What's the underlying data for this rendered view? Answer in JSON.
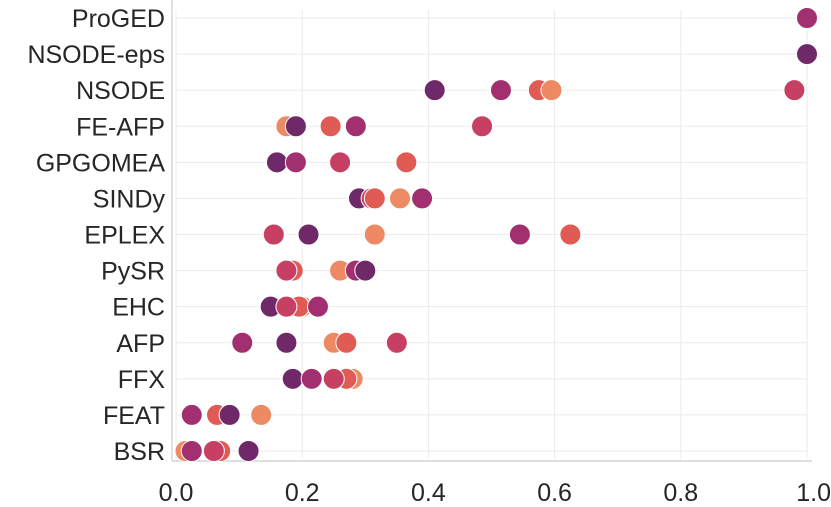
{
  "chart_data": {
    "type": "scatter",
    "title": "",
    "xlabel": "",
    "ylabel": "",
    "xlim": [
      0.0,
      1.0
    ],
    "x_ticks": [
      "0.0",
      "0.2",
      "0.4",
      "0.6",
      "0.8",
      "1.0"
    ],
    "grid": true,
    "legend": "none",
    "categories": [
      "ProGED",
      "NSODE-eps",
      "NSODE",
      "FE-AFP",
      "GPGOMEA",
      "SINDy",
      "EPLEX",
      "PySR",
      "EHC",
      "AFP",
      "FFX",
      "FEAT",
      "BSR"
    ],
    "palette": [
      "#ee8a63",
      "#e05b53",
      "#c83f64",
      "#a23070",
      "#702968"
    ],
    "points": [
      {
        "category": "ProGED",
        "x": 1.0,
        "color": "#a23070"
      },
      {
        "category": "NSODE-eps",
        "x": 1.0,
        "color": "#702968"
      },
      {
        "category": "NSODE",
        "x": 0.41,
        "color": "#702968"
      },
      {
        "category": "NSODE",
        "x": 0.515,
        "color": "#a23070"
      },
      {
        "category": "NSODE",
        "x": 0.575,
        "color": "#e05b53"
      },
      {
        "category": "NSODE",
        "x": 0.595,
        "color": "#ee8a63"
      },
      {
        "category": "NSODE",
        "x": 0.98,
        "color": "#c83f64"
      },
      {
        "category": "FE-AFP",
        "x": 0.175,
        "color": "#ee8a63"
      },
      {
        "category": "FE-AFP",
        "x": 0.19,
        "color": "#702968"
      },
      {
        "category": "FE-AFP",
        "x": 0.245,
        "color": "#e05b53"
      },
      {
        "category": "FE-AFP",
        "x": 0.285,
        "color": "#a23070"
      },
      {
        "category": "FE-AFP",
        "x": 0.485,
        "color": "#c83f64"
      },
      {
        "category": "GPGOMEA",
        "x": 0.16,
        "color": "#702968"
      },
      {
        "category": "GPGOMEA",
        "x": 0.19,
        "color": "#a23070"
      },
      {
        "category": "GPGOMEA",
        "x": 0.26,
        "color": "#c83f64"
      },
      {
        "category": "GPGOMEA",
        "x": 0.365,
        "color": "#e05b53"
      },
      {
        "category": "SINDy",
        "x": 0.29,
        "color": "#702968"
      },
      {
        "category": "SINDy",
        "x": 0.31,
        "color": "#c83f64"
      },
      {
        "category": "SINDy",
        "x": 0.315,
        "color": "#e05b53"
      },
      {
        "category": "SINDy",
        "x": 0.355,
        "color": "#ee8a63"
      },
      {
        "category": "SINDy",
        "x": 0.39,
        "color": "#a23070"
      },
      {
        "category": "EPLEX",
        "x": 0.155,
        "color": "#c83f64"
      },
      {
        "category": "EPLEX",
        "x": 0.21,
        "color": "#702968"
      },
      {
        "category": "EPLEX",
        "x": 0.315,
        "color": "#ee8a63"
      },
      {
        "category": "EPLEX",
        "x": 0.545,
        "color": "#a23070"
      },
      {
        "category": "EPLEX",
        "x": 0.625,
        "color": "#e05b53"
      },
      {
        "category": "PySR",
        "x": 0.185,
        "color": "#e05b53"
      },
      {
        "category": "PySR",
        "x": 0.175,
        "color": "#c83f64"
      },
      {
        "category": "PySR",
        "x": 0.26,
        "color": "#ee8a63"
      },
      {
        "category": "PySR",
        "x": 0.285,
        "color": "#a23070"
      },
      {
        "category": "PySR",
        "x": 0.3,
        "color": "#702968"
      },
      {
        "category": "EHC",
        "x": 0.15,
        "color": "#702968"
      },
      {
        "category": "EHC",
        "x": 0.2,
        "color": "#ee8a63"
      },
      {
        "category": "EHC",
        "x": 0.195,
        "color": "#e05b53"
      },
      {
        "category": "EHC",
        "x": 0.175,
        "color": "#c83f64"
      },
      {
        "category": "EHC",
        "x": 0.225,
        "color": "#a23070"
      },
      {
        "category": "AFP",
        "x": 0.105,
        "color": "#a23070"
      },
      {
        "category": "AFP",
        "x": 0.175,
        "color": "#702968"
      },
      {
        "category": "AFP",
        "x": 0.25,
        "color": "#ee8a63"
      },
      {
        "category": "AFP",
        "x": 0.27,
        "color": "#e05b53"
      },
      {
        "category": "AFP",
        "x": 0.35,
        "color": "#c83f64"
      },
      {
        "category": "FFX",
        "x": 0.185,
        "color": "#702968"
      },
      {
        "category": "FFX",
        "x": 0.215,
        "color": "#a23070"
      },
      {
        "category": "FFX",
        "x": 0.28,
        "color": "#ee8a63"
      },
      {
        "category": "FFX",
        "x": 0.27,
        "color": "#e05b53"
      },
      {
        "category": "FFX",
        "x": 0.25,
        "color": "#c83f64"
      },
      {
        "category": "FEAT",
        "x": 0.025,
        "color": "#a23070"
      },
      {
        "category": "FEAT",
        "x": 0.065,
        "color": "#e05b53"
      },
      {
        "category": "FEAT",
        "x": 0.085,
        "color": "#702968"
      },
      {
        "category": "FEAT",
        "x": 0.135,
        "color": "#ee8a63"
      },
      {
        "category": "BSR",
        "x": 0.015,
        "color": "#ee8a63"
      },
      {
        "category": "BSR",
        "x": 0.025,
        "color": "#a23070"
      },
      {
        "category": "BSR",
        "x": 0.07,
        "color": "#e05b53"
      },
      {
        "category": "BSR",
        "x": 0.06,
        "color": "#c83f64"
      },
      {
        "category": "BSR",
        "x": 0.115,
        "color": "#702968"
      }
    ]
  }
}
